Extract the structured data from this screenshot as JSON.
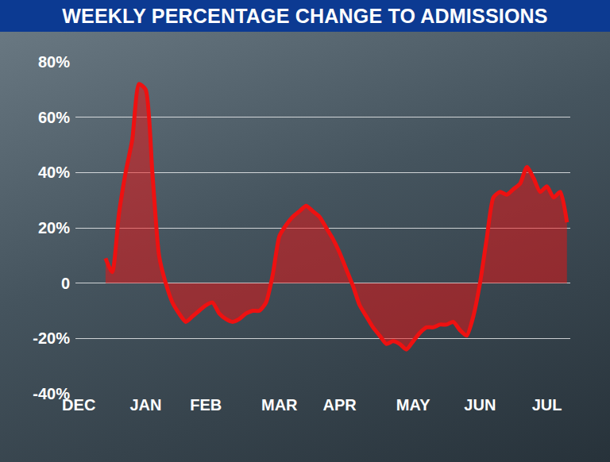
{
  "chart_data": {
    "type": "line",
    "title": "WEEKLY PERCENTAGE CHANGE TO ADMISSIONS",
    "categories": [
      "DEC",
      null,
      null,
      null,
      null,
      null,
      null,
      null,
      null,
      null,
      "JAN",
      null,
      null,
      null,
      null,
      null,
      null,
      null,
      null,
      "FEB",
      null,
      null,
      null,
      null,
      null,
      null,
      null,
      null,
      null,
      null,
      "MAR",
      null,
      null,
      null,
      null,
      null,
      null,
      null,
      null,
      "APR",
      null,
      null,
      null,
      null,
      null,
      null,
      null,
      null,
      null,
      null,
      "MAY",
      null,
      null,
      null,
      null,
      null,
      null,
      null,
      null,
      null,
      "JUN",
      null,
      null,
      null,
      null,
      null,
      null,
      null,
      null,
      null,
      "JUL",
      null,
      null,
      null
    ],
    "values": [
      null,
      null,
      null,
      null,
      9,
      4,
      25,
      40,
      52,
      72,
      70,
      40,
      10,
      0,
      -7,
      -11,
      -14,
      -12,
      -10,
      -8,
      -7,
      -11,
      -13,
      -14,
      -13,
      -11,
      -10,
      -10,
      -7,
      3,
      17,
      21,
      24,
      26,
      28,
      26,
      24,
      20,
      16,
      11,
      5,
      -1,
      -8,
      -12,
      -16,
      -19,
      -22,
      -21,
      -22,
      -24,
      -21,
      -18,
      -16,
      -16,
      -15,
      -15,
      -14,
      -17,
      -19,
      -12,
      0,
      16,
      31,
      33,
      32,
      34,
      36,
      42,
      38,
      33,
      35,
      31,
      33,
      22
    ],
    "color": "#ee1111",
    "ylim": [
      -40,
      80
    ],
    "yticks": [
      {
        "value": -40,
        "label": "-40%"
      },
      {
        "value": -20,
        "label": "-20%"
      },
      {
        "value": 0,
        "label": "0"
      },
      {
        "value": 20,
        "label": "20%"
      },
      {
        "value": 40,
        "label": "40%"
      },
      {
        "value": 60,
        "label": "60%"
      },
      {
        "value": 80,
        "label": "80%"
      }
    ],
    "grid": true
  }
}
